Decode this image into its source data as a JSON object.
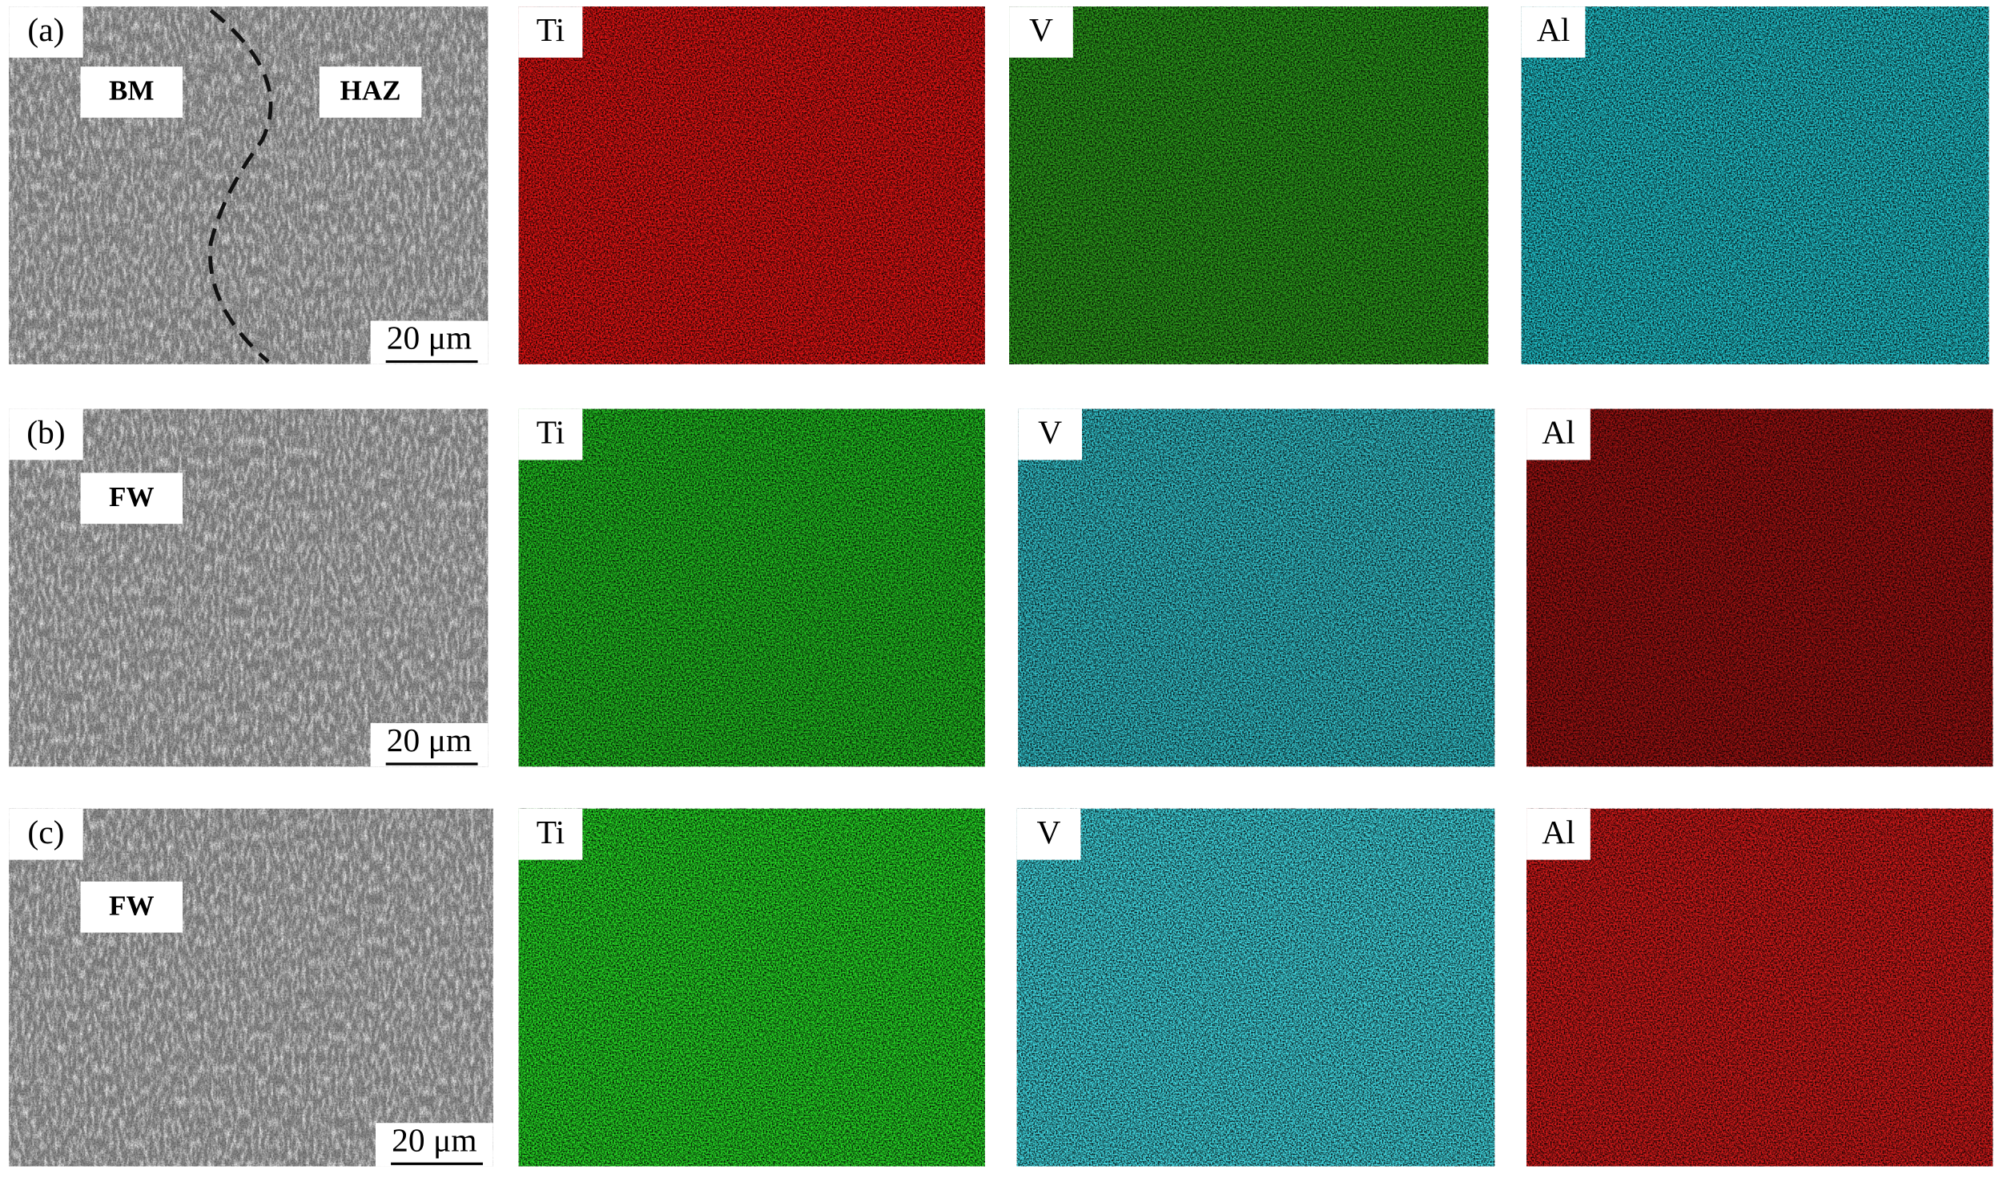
{
  "rows": [
    {
      "label": "(a)",
      "sem": {
        "regions": [
          "BM",
          "HAZ"
        ],
        "scale_bar": "20 μm"
      },
      "maps": [
        {
          "element": "Ti",
          "color": "#e41414"
        },
        {
          "element": "V",
          "color": "#2c9e1c"
        },
        {
          "element": "Al",
          "color": "#22c6d0"
        }
      ]
    },
    {
      "label": "(b)",
      "sem": {
        "regions": [
          "FW"
        ],
        "scale_bar": "20 μm"
      },
      "maps": [
        {
          "element": "Ti",
          "color": "#22c422"
        },
        {
          "element": "V",
          "color": "#34c6d0"
        },
        {
          "element": "Al",
          "color": "#a01212"
        }
      ]
    },
    {
      "label": "(c)",
      "sem": {
        "regions": [
          "FW"
        ],
        "scale_bar": "20 μm"
      },
      "maps": [
        {
          "element": "Ti",
          "color": "#26dc26"
        },
        {
          "element": "V",
          "color": "#42dce6"
        },
        {
          "element": "Al",
          "color": "#d41a1a"
        }
      ]
    }
  ]
}
